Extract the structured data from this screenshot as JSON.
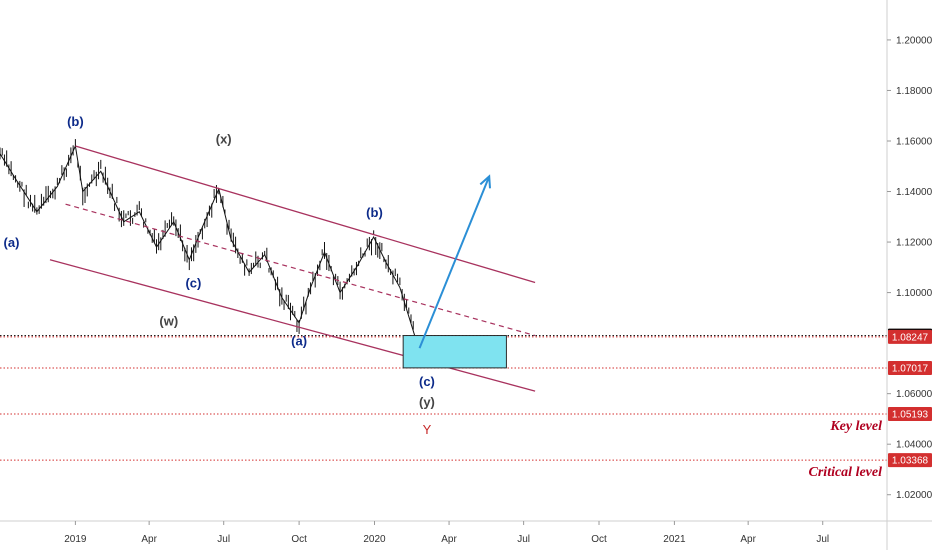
{
  "chart_data": {
    "type": "line",
    "title": "",
    "x_ticks": [
      "2019",
      "Apr",
      "Jul",
      "Oct",
      "2020",
      "Apr",
      "Jul",
      "Oct",
      "2021",
      "Apr",
      "Jul"
    ],
    "y_ticks": [
      "1.20000",
      "1.18000",
      "1.16000",
      "1.14000",
      "1.12000",
      "1.10000",
      "1.06000",
      "1.04000",
      "1.02000"
    ],
    "ylim": [
      1.01,
      1.22
    ],
    "price_path": {
      "x": [
        "2018-10-01",
        "2018-10-20",
        "2018-11-15",
        "2018-12-10",
        "2019-01-01",
        "2019-01-10",
        "2019-02-01",
        "2019-03-01",
        "2019-03-20",
        "2019-04-10",
        "2019-05-01",
        "2019-05-20",
        "2019-06-05",
        "2019-06-25",
        "2019-07-10",
        "2019-08-01",
        "2019-08-20",
        "2019-09-10",
        "2019-10-01",
        "2019-10-15",
        "2019-11-01",
        "2019-11-20",
        "2019-12-10",
        "2019-12-31",
        "2020-01-15",
        "2020-02-01",
        "2020-02-20"
      ],
      "y": [
        1.155,
        1.145,
        1.132,
        1.142,
        1.158,
        1.14,
        1.148,
        1.128,
        1.132,
        1.118,
        1.128,
        1.113,
        1.126,
        1.141,
        1.121,
        1.108,
        1.115,
        1.098,
        1.088,
        1.102,
        1.116,
        1.1,
        1.11,
        1.122,
        1.112,
        1.102,
        1.082
      ]
    },
    "channel_lines": [
      {
        "x": [
          "2019-01-01",
          "2020-07-15"
        ],
        "y": [
          1.158,
          1.104
        ]
      },
      {
        "x": [
          "2018-12-01",
          "2020-07-15"
        ],
        "y": [
          1.113,
          1.061
        ]
      }
    ],
    "midline": {
      "x": [
        "2018-12-20",
        "2020-07-15"
      ],
      "y": [
        1.135,
        1.083
      ]
    },
    "projection_arrow": {
      "x": [
        "2020-02-25",
        "2020-05-20"
      ],
      "y": [
        1.078,
        1.146
      ]
    },
    "target_zone": {
      "x": [
        "2020-02-05",
        "2020-06-10"
      ],
      "y": [
        1.083,
        1.0702
      ]
    },
    "horizontal_levels": [
      {
        "value": 1.08295,
        "label": "1.08295",
        "style": "dotted",
        "color": "#000000"
      },
      {
        "value": 1.08247,
        "label": "1.08247",
        "style": "dotted",
        "color": "#d32f2f"
      },
      {
        "value": 1.07017,
        "label": "1.07017",
        "style": "dotted",
        "color": "#d32f2f"
      },
      {
        "value": 1.05193,
        "label": "1.05193",
        "style": "dotted",
        "color": "#d32f2f",
        "annotation": "Key level"
      },
      {
        "value": 1.03368,
        "label": "1.03368",
        "style": "dotted",
        "color": "#d32f2f",
        "annotation": "Critical level"
      }
    ],
    "wave_labels": [
      {
        "text": "(b)",
        "x": "2019-01-01",
        "y": 1.166,
        "color": "#0d2b8a"
      },
      {
        "text": "(x)",
        "x": "2019-07-01",
        "y": 1.159,
        "color": "#444444"
      },
      {
        "text": "(a)",
        "x": "2018-10-15",
        "y": 1.118,
        "color": "#0d2b8a"
      },
      {
        "text": "(c)",
        "x": "2019-05-25",
        "y": 1.102,
        "color": "#0d2b8a"
      },
      {
        "text": "(w)",
        "x": "2019-04-25",
        "y": 1.087,
        "color": "#444444"
      },
      {
        "text": "(a)",
        "x": "2019-10-01",
        "y": 1.079,
        "color": "#0d2b8a"
      },
      {
        "text": "(b)",
        "x": "2020-01-01",
        "y": 1.13,
        "color": "#0d2b8a"
      },
      {
        "text": "(c)",
        "x": "2020-03-05",
        "y": 1.063,
        "color": "#0d2b8a"
      },
      {
        "text": "(y)",
        "x": "2020-03-05",
        "y": 1.055,
        "color": "#444444"
      },
      {
        "text": "Y",
        "x": "2020-03-05",
        "y": 1.044,
        "color": "#c62828"
      }
    ],
    "colors": {
      "channel": "#a8325e",
      "arrow": "#2b8fd6",
      "zone_fill": "#7fe3f0",
      "level": "#d32f2f"
    }
  }
}
